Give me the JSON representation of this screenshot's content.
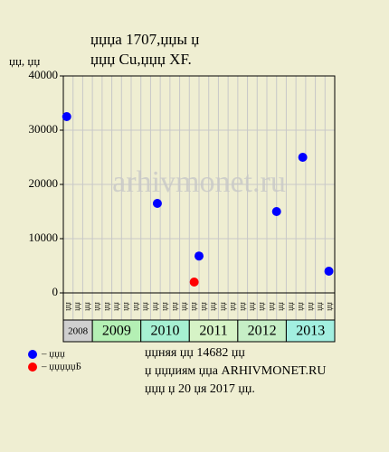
{
  "chart_data": {
    "type": "scatter",
    "title": [
      "џџџа 1707,џџы џ",
      "џџџ Cu,џџџ XF."
    ],
    "y_label": "џџ, џџ",
    "watermark": "arhivmonet.ru",
    "xlim": [
      0,
      28
    ],
    "ylim": [
      0,
      40000
    ],
    "yticks": [
      0,
      10000,
      20000,
      30000,
      40000
    ],
    "grid": true,
    "columns": [
      "џџ",
      "џџ",
      "џџ",
      "џџ",
      "џџ",
      "џџ",
      "џџ",
      "џџ",
      "џџ",
      "џџ",
      "џџ",
      "џџ",
      "џџ",
      "џџ",
      "џџ",
      "џџ",
      "џџ",
      "џџ",
      "џџ",
      "џџ",
      "џџ",
      "џџ",
      "џџ",
      "џџ",
      "џџ",
      "џџ",
      "џџ",
      "џџ"
    ],
    "years": [
      {
        "label": "2008",
        "start": 0,
        "end": 3,
        "color": "#cfcfcf"
      },
      {
        "label": "2009",
        "start": 3,
        "end": 8,
        "color": "#b4f0b4"
      },
      {
        "label": "2010",
        "start": 8,
        "end": 13,
        "color": "#a6f0d2"
      },
      {
        "label": "2011",
        "start": 13,
        "end": 18,
        "color": "#d6f3c6"
      },
      {
        "label": "2012",
        "start": 18,
        "end": 23,
        "color": "#c6efc6"
      },
      {
        "label": "2013",
        "start": 23,
        "end": 28,
        "color": "#a2efe0"
      }
    ],
    "series": [
      {
        "name": "– џџџ",
        "color": "#0000ff",
        "x": [
          0.35,
          9.7,
          14.0,
          22.0,
          24.7,
          27.4
        ],
        "values": [
          32500,
          16500,
          6800,
          15000,
          25000,
          4000
        ]
      },
      {
        "name": "– џџџџџБ",
        "color": "#ff0000",
        "x": [
          13.5
        ],
        "values": [
          2000
        ]
      }
    ],
    "footer": [
      "џџняя џџ 14682 џџ",
      "џ џџџиям џџа ARHIVMONET.RU",
      "џџџ џ 20 џя 2017 џџ."
    ]
  }
}
